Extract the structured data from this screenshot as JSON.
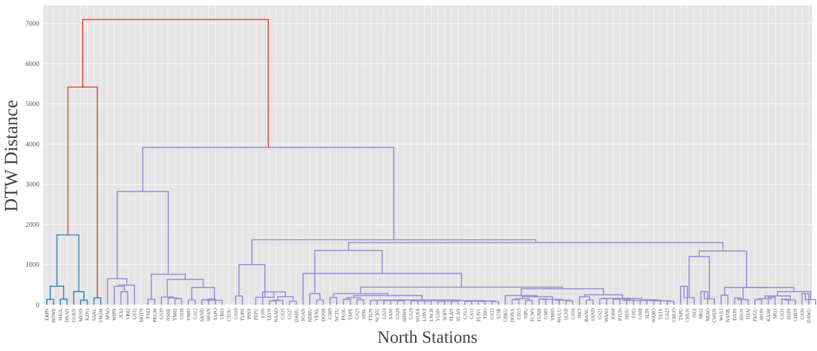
{
  "chart_data": {
    "type": "dendrogram",
    "xlabel": "North Stations",
    "ylabel": "DTW Distance",
    "ylim": [
      0,
      7450
    ],
    "yticks": [
      0,
      1000,
      2000,
      3000,
      4000,
      5000,
      6000,
      7000
    ],
    "grid": true,
    "colors": {
      "background": "#e5e5e5",
      "grid": "#ffffff",
      "above_threshold": "#e24a33",
      "cluster_1": "#348abd",
      "cluster_2": "#988ed5"
    },
    "leaves": [
      "ERPN",
      "HOWE",
      "SHUL",
      "DNAN",
      "GUKN",
      "MESN",
      "KZN1",
      "SANL",
      "YMSM",
      "SPAO",
      "WIPN",
      "JULI",
      "VR02",
      "GS32",
      "MOTN",
      "FALI",
      "PKGM",
      "GS39",
      "NSHE",
      "YM02",
      "GS38",
      "YM03",
      "GS12",
      "AKND",
      "SHAN",
      "TAPO",
      "VR03",
      "CTOU",
      "GS10",
      "TUPN",
      "PINT",
      "PEPU",
      "S106",
      "TAYN",
      "NAAO",
      "GS35",
      "GS27",
      "DAHU",
      "SGAN",
      "NDHU",
      "YENL",
      "DOSH",
      "GS09",
      "NCTU",
      "PAOL",
      "TAPE",
      "GS25",
      "SINL",
      "TTUN",
      "NCKU",
      "GS24",
      "SANI",
      "GS28",
      "SHWA",
      "GS29",
      "WUFA",
      "LONT",
      "LNCH",
      "YUSN",
      "SOFN",
      "FLAN",
      "SUAN",
      "GS13",
      "GS11",
      "FUNY",
      "TSIO",
      "GS33",
      "S23R",
      "CHKU",
      "DONA",
      "GS15",
      "SIPU",
      "FCWS",
      "TUNH",
      "GS05",
      "YM05",
      "WULU",
      "SLNP",
      "GS16",
      "JHCI",
      "BANC",
      "SAND",
      "GS21",
      "WANS",
      "JONP",
      "PTUN",
      "SHJU",
      "S103",
      "GS08",
      "SLIN",
      "WARO",
      "TATA",
      "GS23",
      "CHGO",
      "TAPU",
      "CHUN",
      "JSUI",
      "SR12",
      "MIAO",
      "CWEN",
      "WULI",
      "NANK",
      "DAJN",
      "SSUN",
      "THAI",
      "PKGU",
      "SFON",
      "KASH",
      "SR11",
      "GS31",
      "HSIN",
      "CHEN",
      "GS36",
      "DAWU"
    ],
    "links": [
      {
        "a": 0,
        "b": 1,
        "h": 135,
        "c": "cluster_1"
      },
      {
        "a": 2,
        "b": 3,
        "h": 140,
        "c": "cluster_1"
      },
      {
        "a": 5,
        "b": 6,
        "h": 115,
        "c": "cluster_1"
      },
      {
        "a": "n0",
        "b": "n1",
        "h": 460,
        "c": "cluster_1"
      },
      {
        "a": 4,
        "b": "n2",
        "h": 330,
        "c": "cluster_1"
      },
      {
        "a": "n3",
        "b": "n4",
        "h": 1740,
        "c": "cluster_1"
      },
      {
        "a": 7,
        "b": 8,
        "h": 175,
        "c": "cluster_1"
      },
      {
        "a": "n5",
        "b": "n6",
        "h": 5420,
        "c": "above_threshold"
      },
      {
        "a": 11,
        "b": 12,
        "h": 330,
        "c": "cluster_2"
      },
      {
        "a": 10,
        "b": "n8",
        "h": 460,
        "c": "cluster_2"
      },
      {
        "a": "n9",
        "b": 13,
        "h": 490,
        "c": "cluster_2"
      },
      {
        "a": 9,
        "b": "n10",
        "h": 650,
        "c": "cluster_2"
      },
      {
        "a": 15,
        "b": 16,
        "h": 140,
        "c": "cluster_2"
      },
      {
        "a": 19,
        "b": 20,
        "h": 150,
        "c": "cluster_2"
      },
      {
        "a": 18,
        "b": "n13",
        "h": 170,
        "c": "cluster_2"
      },
      {
        "a": 17,
        "b": "n14",
        "h": 195,
        "c": "cluster_2"
      },
      {
        "a": 21,
        "b": 22,
        "h": 120,
        "c": "cluster_2"
      },
      {
        "a": 24,
        "b": 25,
        "h": 145,
        "c": "cluster_2"
      },
      {
        "a": 23,
        "b": "n17",
        "h": 125,
        "c": "cluster_2"
      },
      {
        "a": "n18",
        "b": 26,
        "h": 110,
        "c": "cluster_2"
      },
      {
        "a": "n16",
        "b": "n19",
        "h": 430,
        "c": "cluster_2"
      },
      {
        "a": "n15",
        "b": "n20",
        "h": 630,
        "c": "cluster_2"
      },
      {
        "a": "n12",
        "b": "n21",
        "h": 760,
        "c": "cluster_2"
      },
      {
        "a": "n11",
        "b": "n22",
        "h": 2820,
        "c": "cluster_2"
      },
      {
        "a": 28,
        "b": 29,
        "h": 220,
        "c": "cluster_2"
      },
      {
        "a": 33,
        "b": 34,
        "h": 95,
        "c": "cluster_2"
      },
      {
        "a": "n25",
        "b": 35,
        "h": 110,
        "c": "cluster_2"
      },
      {
        "a": 36,
        "b": 37,
        "h": 90,
        "c": "cluster_2"
      },
      {
        "a": "n26",
        "b": "n27",
        "h": 200,
        "c": "cluster_2"
      },
      {
        "a": 32,
        "b": "n28",
        "h": 320,
        "c": "cluster_2"
      },
      {
        "a": 31,
        "b": "n29",
        "h": 185,
        "c": "cluster_2"
      },
      {
        "a": "n24",
        "b": "n30",
        "h": 1000,
        "c": "cluster_2"
      },
      {
        "a": 40,
        "b": 41,
        "h": 120,
        "c": "cluster_2"
      },
      {
        "a": 39,
        "b": "n32",
        "h": 280,
        "c": "cluster_2"
      },
      {
        "a": 42,
        "b": 43,
        "h": 180,
        "c": "cluster_2"
      },
      {
        "a": 44,
        "b": 45,
        "h": 140,
        "c": "cluster_2"
      },
      {
        "a": 46,
        "b": 47,
        "h": 125,
        "c": "cluster_2"
      },
      {
        "a": "n35",
        "b": "n36",
        "h": 180,
        "c": "cluster_2"
      },
      {
        "a": 48,
        "b": 49,
        "h": 110,
        "c": "cluster_2"
      },
      {
        "a": 50,
        "b": 51,
        "h": 110,
        "c": "cluster_2"
      },
      {
        "a": 52,
        "b": 53,
        "h": 100,
        "c": "cluster_2"
      },
      {
        "a": "n39",
        "b": "n40",
        "h": 110,
        "c": "cluster_2"
      },
      {
        "a": "n38",
        "b": "n41",
        "h": 115,
        "c": "cluster_2"
      },
      {
        "a": 54,
        "b": 55,
        "h": 100,
        "c": "cluster_2"
      },
      {
        "a": 56,
        "b": 57,
        "h": 95,
        "c": "cluster_2"
      },
      {
        "a": "n43",
        "b": "n44",
        "h": 100,
        "c": "cluster_2"
      },
      {
        "a": 58,
        "b": 59,
        "h": 90,
        "c": "cluster_2"
      },
      {
        "a": 60,
        "b": 61,
        "h": 90,
        "c": "cluster_2"
      },
      {
        "a": "n46",
        "b": "n47",
        "h": 95,
        "c": "cluster_2"
      },
      {
        "a": "n45",
        "b": "n48",
        "h": 100,
        "c": "cluster_2"
      },
      {
        "a": 62,
        "b": 63,
        "h": 85,
        "c": "cluster_2"
      },
      {
        "a": 64,
        "b": 65,
        "h": 85,
        "c": "cluster_2"
      },
      {
        "a": "n50",
        "b": "n51",
        "h": 90,
        "c": "cluster_2"
      },
      {
        "a": 66,
        "b": 67,
        "h": 80,
        "c": "cluster_2"
      },
      {
        "a": "n52",
        "b": "n53",
        "h": 95,
        "c": "cluster_2"
      },
      {
        "a": "n49",
        "b": "n54",
        "h": 105,
        "c": "cluster_2"
      },
      {
        "a": "n42",
        "b": "n55",
        "h": 120,
        "c": "cluster_2"
      },
      {
        "a": "n37",
        "b": "n56",
        "h": 230,
        "c": "cluster_2"
      },
      {
        "a": "n34",
        "b": "n57",
        "h": 280,
        "c": "cluster_2"
      },
      {
        "a": 69,
        "b": 70,
        "h": 130,
        "c": "cluster_2"
      },
      {
        "a": 71,
        "b": 72,
        "h": 110,
        "c": "cluster_2"
      },
      {
        "a": "n59",
        "b": "n60",
        "h": 150,
        "c": "cluster_2"
      },
      {
        "a": 73,
        "b": 74,
        "h": 145,
        "c": "cluster_2"
      },
      {
        "a": 75,
        "b": 76,
        "h": 130,
        "c": "cluster_2"
      },
      {
        "a": 77,
        "b": 78,
        "h": 100,
        "c": "cluster_2"
      },
      {
        "a": "n63",
        "b": "n64",
        "h": 115,
        "c": "cluster_2"
      },
      {
        "a": "n62",
        "b": "n65",
        "h": 135,
        "c": "cluster_2"
      },
      {
        "a": "n61",
        "b": "n66",
        "h": 200,
        "c": "cluster_2"
      },
      {
        "a": 68,
        "b": "n67",
        "h": 230,
        "c": "cluster_2"
      },
      {
        "a": 80,
        "b": 81,
        "h": 120,
        "c": "cluster_2"
      },
      {
        "a": 79,
        "b": "n69",
        "h": 200,
        "c": "cluster_2"
      },
      {
        "a": 82,
        "b": 83,
        "h": 150,
        "c": "cluster_2"
      },
      {
        "a": 84,
        "b": 85,
        "h": 135,
        "c": "cluster_2"
      },
      {
        "a": 86,
        "b": 87,
        "h": 120,
        "c": "cluster_2"
      },
      {
        "a": "n72",
        "b": "n73",
        "h": 140,
        "c": "cluster_2"
      },
      {
        "a": 88,
        "b": 89,
        "h": 110,
        "c": "cluster_2"
      },
      {
        "a": 90,
        "b": 91,
        "h": 115,
        "c": "cluster_2"
      },
      {
        "a": "n75",
        "b": "n76",
        "h": 125,
        "c": "cluster_2"
      },
      {
        "a": 92,
        "b": 93,
        "h": 90,
        "c": "cluster_2"
      },
      {
        "a": "n77",
        "b": "n78",
        "h": 100,
        "c": "cluster_2"
      },
      {
        "a": "n74",
        "b": "n79",
        "h": 110,
        "c": "cluster_2"
      },
      {
        "a": "n71",
        "b": "n80",
        "h": 160,
        "c": "cluster_2"
      },
      {
        "a": "n70",
        "b": "n81",
        "h": 250,
        "c": "cluster_2"
      },
      {
        "a": "n68",
        "b": "n82",
        "h": 400,
        "c": "cluster_2"
      },
      {
        "a": "n58",
        "b": "n83",
        "h": 440,
        "c": "cluster_2"
      },
      {
        "a": 38,
        "b": "n84",
        "h": 780,
        "c": "cluster_2"
      },
      {
        "a": "n33",
        "b": "n85",
        "h": 1350,
        "c": "cluster_2"
      },
      {
        "a": 94,
        "b": 95,
        "h": 460,
        "c": "cluster_2"
      },
      {
        "a": "n87",
        "b": 96,
        "h": 180,
        "c": "cluster_2"
      },
      {
        "a": 97,
        "b": 98,
        "h": 330,
        "c": "cluster_2"
      },
      {
        "a": "n89",
        "b": 99,
        "h": 150,
        "c": "cluster_2"
      },
      {
        "a": "n88",
        "b": "n90",
        "h": 1200,
        "c": "cluster_2"
      },
      {
        "a": 100,
        "b": 101,
        "h": 240,
        "c": "cluster_2"
      },
      {
        "a": 102,
        "b": 103,
        "h": 170,
        "c": "cluster_2"
      },
      {
        "a": "n93",
        "b": 104,
        "h": 130,
        "c": "cluster_2"
      },
      {
        "a": 105,
        "b": 106,
        "h": 130,
        "c": "cluster_2"
      },
      {
        "a": 107,
        "b": 108,
        "h": 190,
        "c": "cluster_2"
      },
      {
        "a": "n95",
        "b": "n96",
        "h": 150,
        "c": "cluster_2"
      },
      {
        "a": 109,
        "b": 110,
        "h": 140,
        "c": "cluster_2"
      },
      {
        "a": "n98",
        "b": 111,
        "h": 120,
        "c": "cluster_2"
      },
      {
        "a": "n97",
        "b": "n99",
        "h": 220,
        "c": "cluster_2"
      },
      {
        "a": 112,
        "b": 113,
        "h": 280,
        "c": "cluster_2"
      },
      {
        "a": "n101",
        "b": 114,
        "h": 130,
        "c": "cluster_2"
      },
      {
        "a": "n100",
        "b": "n102",
        "h": 330,
        "c": "cluster_2"
      },
      {
        "a": "n94",
        "b": "n103",
        "h": 430,
        "c": "cluster_2"
      },
      {
        "a": "n92",
        "b": "n104",
        "h": 430,
        "c": "cluster_2"
      },
      {
        "a": "n91",
        "b": "n105",
        "h": 1340,
        "c": "cluster_2"
      },
      {
        "a": "n86",
        "b": "n106",
        "h": 1550,
        "c": "cluster_2"
      },
      {
        "a": "n31",
        "b": "n107",
        "h": 1620,
        "c": "cluster_2"
      },
      {
        "a": "n23",
        "b": "n108",
        "h": 3920,
        "c": "cluster_2"
      },
      {
        "a": "n7",
        "b": "n109",
        "h": 7100,
        "c": "above_threshold"
      }
    ]
  }
}
